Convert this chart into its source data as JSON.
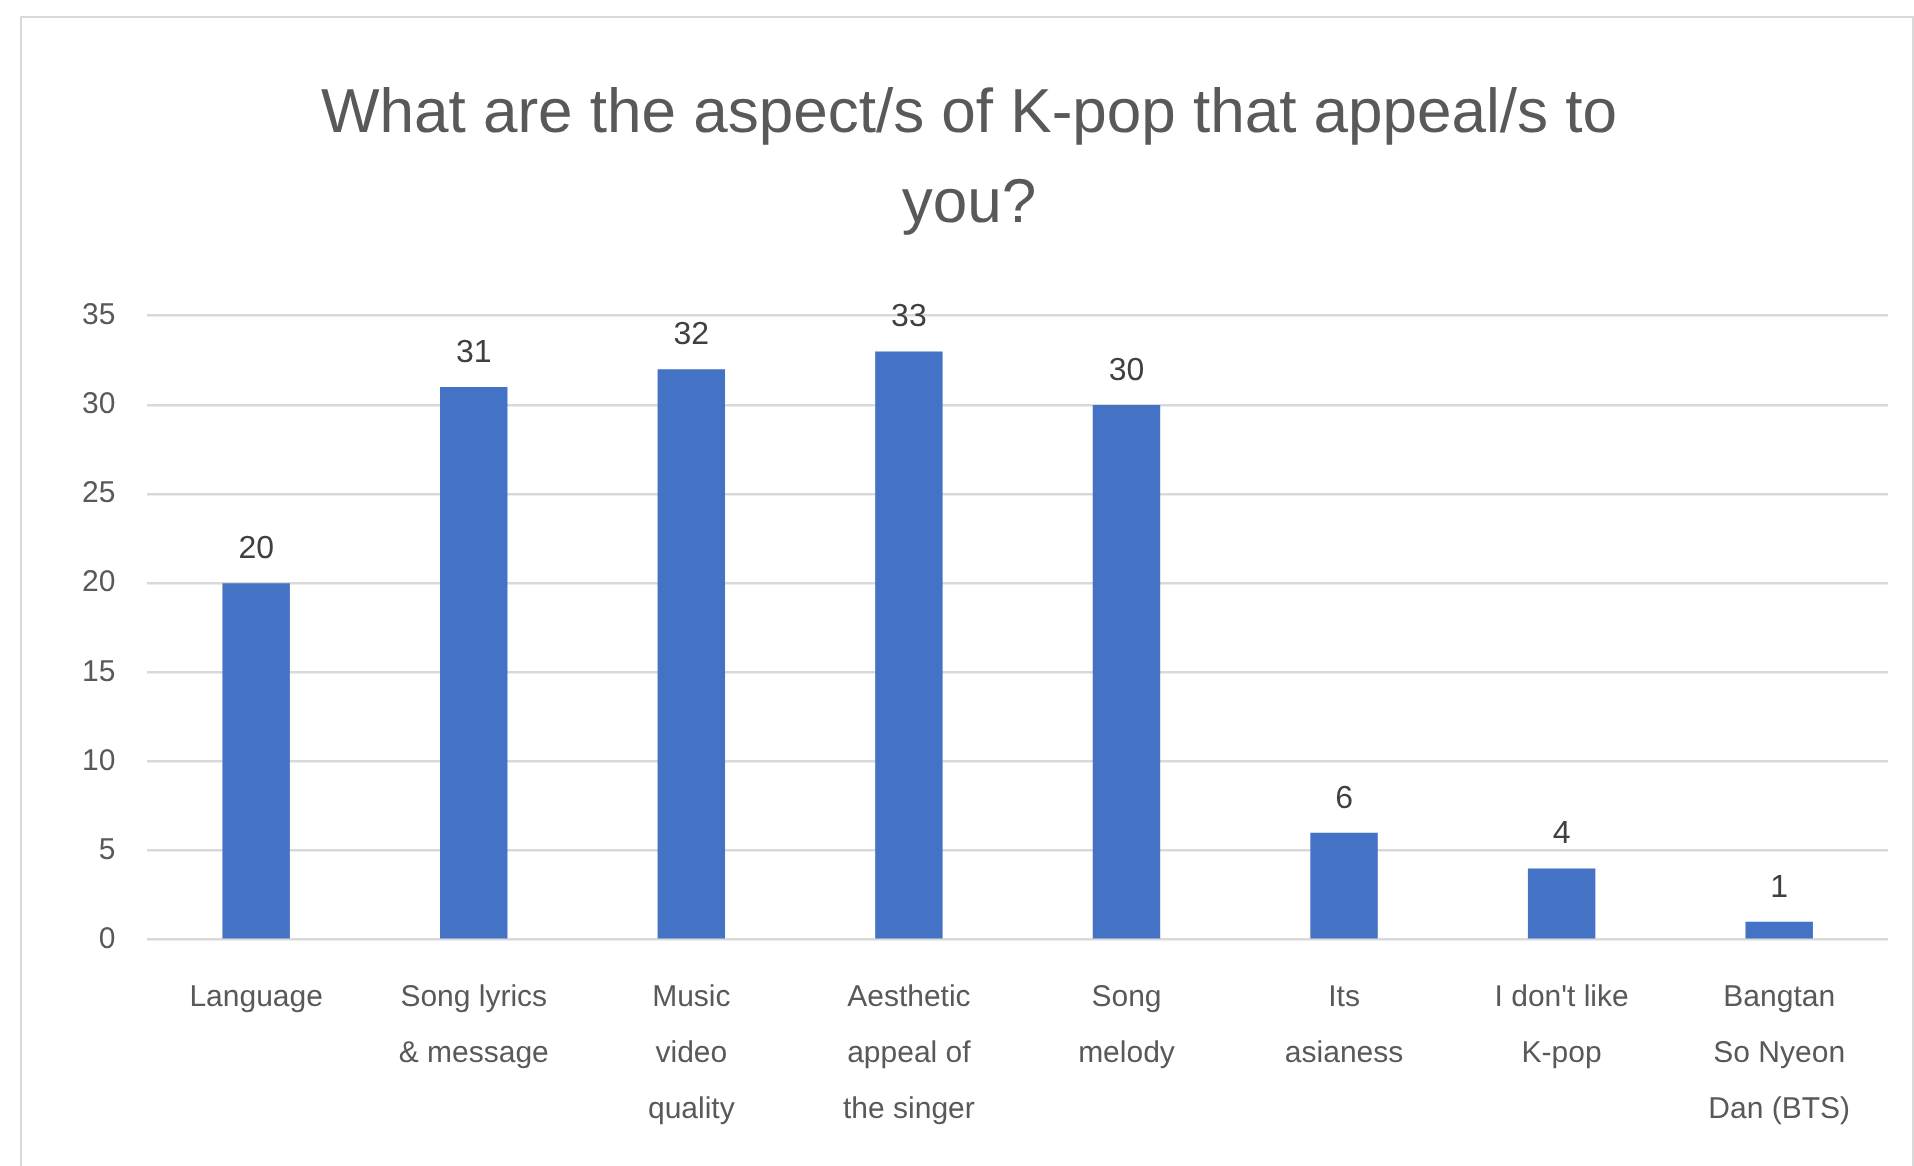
{
  "chart_data": {
    "type": "bar",
    "title": "What are the aspect/s of K-pop that appeal/s to you?",
    "categories": [
      "Language",
      "Song lyrics & message",
      "Music video quality",
      "Aesthetic appeal of the singer",
      "Song melody",
      "Its asianess",
      "I don't like K-pop",
      "Bangtan So Nyeon Dan (BTS)"
    ],
    "values": [
      20,
      31,
      32,
      33,
      30,
      6,
      4,
      1
    ],
    "color": "#4472c4",
    "ylim": [
      0,
      35
    ],
    "yticks": [
      0,
      5,
      10,
      15,
      20,
      25,
      30,
      35
    ],
    "grid": "y",
    "data_labels": true
  }
}
